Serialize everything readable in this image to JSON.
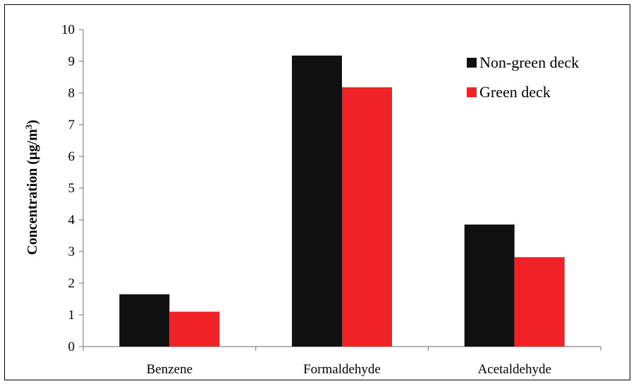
{
  "chart_data": {
    "type": "bar",
    "categories": [
      "Benzene",
      "Formaldehyde",
      "Acetaldehyde"
    ],
    "series": [
      {
        "name": "Non-green deck",
        "color": "#111111",
        "values": [
          1.65,
          9.18,
          3.85
        ]
      },
      {
        "name": "Green deck",
        "color": "#ee2227",
        "values": [
          1.1,
          8.18,
          2.82
        ]
      }
    ],
    "title": "",
    "xlabel": "",
    "ylabel": "Concentration (µg/m",
    "ylabel_superscript": "3",
    "ylabel_suffix": ")",
    "ylim": [
      0,
      10
    ],
    "yticks": [
      0,
      1,
      2,
      3,
      4,
      5,
      6,
      7,
      8,
      9,
      10
    ],
    "grid": false,
    "legend_position": "top-right"
  }
}
